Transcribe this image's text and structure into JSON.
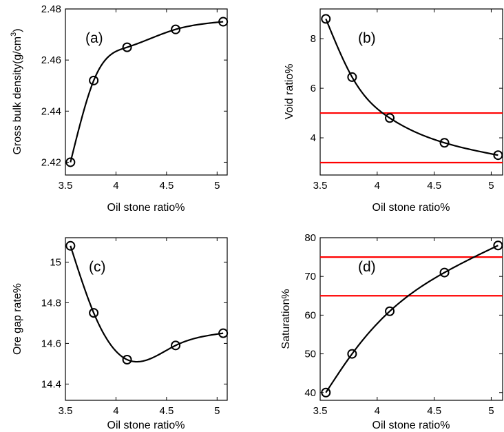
{
  "chart_data": [
    {
      "type": "line",
      "panel_label": "(a)",
      "xlabel": "Oil stone ratio%",
      "ylabel": "Gross bulk density(g/cm",
      "ylabel_sup": "3",
      "ylabel_close": ")",
      "xlim": [
        3.5,
        5.1
      ],
      "ylim": [
        2.415,
        2.48
      ],
      "xticks": [
        3.5,
        4,
        4.5,
        5
      ],
      "xtick_labels": [
        "3.5",
        "4",
        "4.5",
        "5"
      ],
      "yticks": [
        2.42,
        2.44,
        2.46,
        2.48
      ],
      "ytick_labels": [
        "2.42",
        "2.44",
        "2.46",
        "2.48"
      ],
      "x": [
        3.55,
        3.78,
        4.11,
        4.59,
        5.06
      ],
      "y": [
        2.42,
        2.452,
        2.465,
        2.472,
        2.475
      ],
      "line_color": "#000000",
      "reference_lines": []
    },
    {
      "type": "line",
      "panel_label": "(b)",
      "xlabel": "Oil stone ratio%",
      "ylabel": "Void ratio%",
      "xlim": [
        3.5,
        5.1
      ],
      "ylim": [
        2.5,
        9.2
      ],
      "xticks": [
        3.5,
        4,
        4.5,
        5
      ],
      "xtick_labels": [
        "3.5",
        "4",
        "4.5",
        "5"
      ],
      "yticks": [
        4,
        6,
        8
      ],
      "ytick_labels": [
        "4",
        "6",
        "8"
      ],
      "x": [
        3.55,
        3.78,
        4.11,
        4.59,
        5.06
      ],
      "y": [
        8.8,
        6.45,
        4.8,
        3.8,
        3.3
      ],
      "line_color": "#000000",
      "reference_lines": [
        5,
        3
      ],
      "reference_color": "#ff0000"
    },
    {
      "type": "line",
      "panel_label": "(c)",
      "xlabel": "Oil stone ratio%",
      "ylabel": "Ore gap rate%",
      "xlim": [
        3.5,
        5.1
      ],
      "ylim": [
        14.32,
        15.12
      ],
      "xticks": [
        3.5,
        4,
        4.5,
        5
      ],
      "xtick_labels": [
        "3.5",
        "4",
        "4.5",
        "5"
      ],
      "yticks": [
        14.4,
        14.6,
        14.8,
        15
      ],
      "ytick_labels": [
        "14.4",
        "14.6",
        "14.8",
        "15"
      ],
      "x": [
        3.55,
        3.78,
        4.11,
        4.59,
        5.06
      ],
      "y": [
        15.08,
        14.75,
        14.52,
        14.59,
        14.65
      ],
      "line_color": "#000000",
      "reference_lines": []
    },
    {
      "type": "line",
      "panel_label": "(d)",
      "xlabel": "Oil stone ratio%",
      "ylabel": "Saturation%",
      "xlim": [
        3.5,
        5.1
      ],
      "ylim": [
        38,
        80
      ],
      "xticks": [
        3.5,
        4,
        4.5,
        5
      ],
      "xtick_labels": [
        "3.5",
        "4",
        "4.5",
        "5"
      ],
      "yticks": [
        40,
        50,
        60,
        70,
        80
      ],
      "ytick_labels": [
        "40",
        "50",
        "60",
        "70",
        "80"
      ],
      "x": [
        3.55,
        3.78,
        4.11,
        4.59,
        5.06
      ],
      "y": [
        40,
        50,
        61,
        71,
        78
      ],
      "line_color": "#000000",
      "reference_lines": [
        75,
        65
      ],
      "reference_color": "#ff0000"
    }
  ]
}
